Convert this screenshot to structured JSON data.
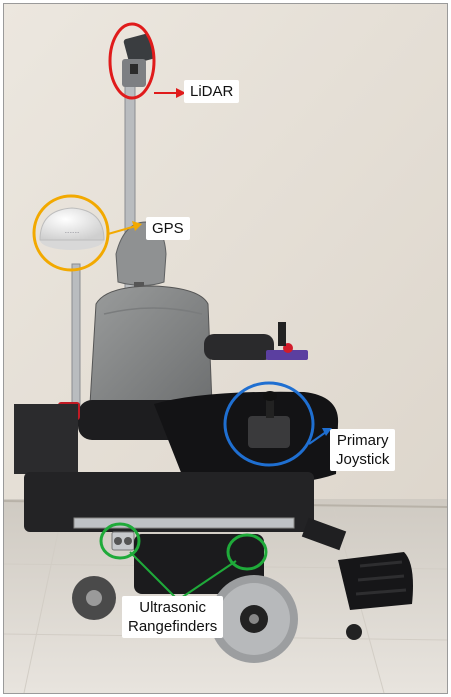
{
  "annotations": {
    "lidar": {
      "label": "LiDAR",
      "color": "#e01b1b"
    },
    "gps": {
      "label": "GPS",
      "color": "#f2a900"
    },
    "joystick": {
      "line1": "Primary",
      "line2": "Joystick",
      "color": "#1f6fd1"
    },
    "ultrasonic": {
      "line1": "Ultrasonic",
      "line2": "Rangefinders",
      "color": "#1faa3a"
    }
  }
}
